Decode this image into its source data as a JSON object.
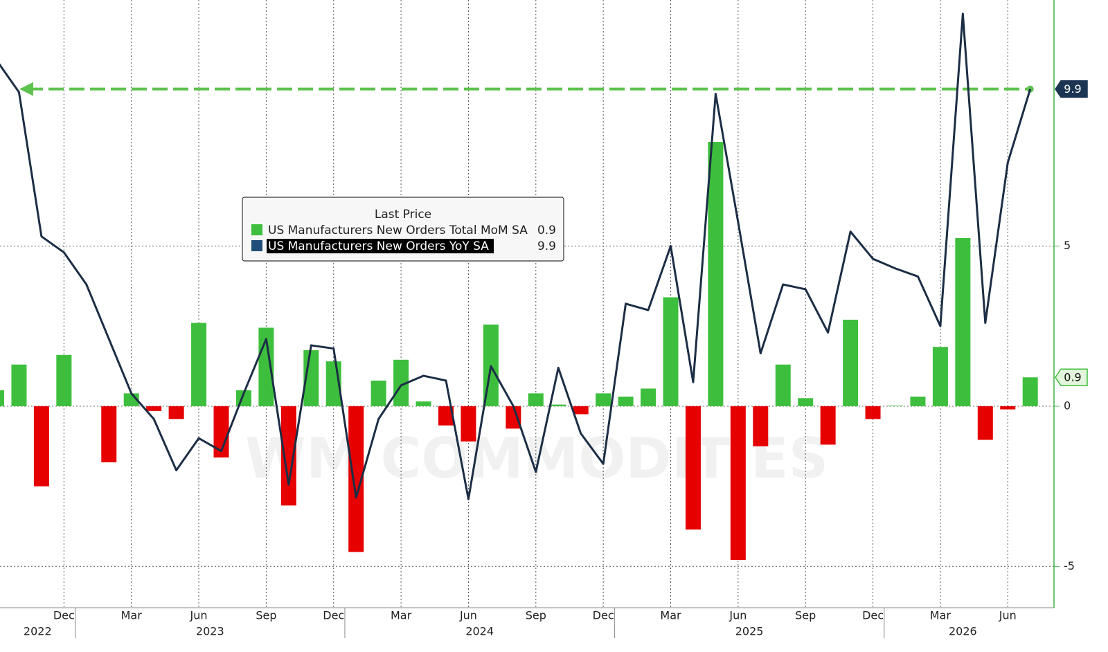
{
  "chart_data": {
    "type": "bar-line",
    "x": [
      "2022-09",
      "2022-10",
      "2022-11",
      "2022-12",
      "2023-01",
      "2023-02",
      "2023-03",
      "2023-04",
      "2023-05",
      "2023-06",
      "2023-07",
      "2023-08",
      "2023-09",
      "2023-10",
      "2023-11",
      "2023-12",
      "2024-01",
      "2024-02",
      "2024-03",
      "2024-04",
      "2024-05",
      "2024-06",
      "2024-07",
      "2024-08",
      "2024-09",
      "2024-10",
      "2024-11",
      "2024-12",
      "2025-01",
      "2025-02",
      "2025-03",
      "2025-04",
      "2025-05",
      "2025-06",
      "2025-07",
      "2025-08",
      "2025-09",
      "2025-10",
      "2025-11",
      "2025-12",
      "2026-01",
      "2026-02",
      "2026-03",
      "2026-04",
      "2026-05",
      "2026-06",
      "2026-07"
    ],
    "series": [
      {
        "name": "US Manufacturers New Orders Total MoM SA",
        "kind": "bar",
        "color": "#3dbf3d",
        "negative_color": "#e60000",
        "values": [
          0.5,
          1.3,
          -2.5,
          1.6,
          0.0,
          -1.75,
          0.4,
          -0.15,
          -0.4,
          2.6,
          -1.6,
          0.5,
          2.45,
          -3.1,
          1.75,
          1.4,
          -4.55,
          0.8,
          1.45,
          0.15,
          -0.6,
          -1.1,
          2.55,
          -0.7,
          0.4,
          0.05,
          -0.25,
          0.4,
          0.3,
          0.55,
          3.4,
          -3.85,
          8.25,
          -4.8,
          -1.25,
          1.3,
          0.25,
          -1.2,
          2.7,
          -0.4,
          0.02,
          0.3,
          1.85,
          5.25,
          -1.05,
          -0.1,
          0.9
        ]
      },
      {
        "name": "US Manufacturers New Orders YoY SA",
        "kind": "line",
        "color": "#1c2e45",
        "swatch_color": "#1f4e79",
        "values": [
          10.8,
          9.8,
          5.3,
          4.8,
          3.8,
          2.1,
          0.4,
          -0.4,
          -2.0,
          -1.0,
          -1.4,
          0.4,
          2.1,
          -2.45,
          1.9,
          1.8,
          -2.85,
          -0.4,
          0.65,
          0.95,
          0.8,
          -2.9,
          1.25,
          0.0,
          -2.05,
          1.2,
          -0.85,
          -1.8,
          3.2,
          3.0,
          5.0,
          0.75,
          9.75,
          5.75,
          1.65,
          3.8,
          3.65,
          2.3,
          5.45,
          4.6,
          4.3,
          4.05,
          2.5,
          12.25,
          2.6,
          7.6,
          9.9
        ]
      }
    ],
    "legend_title": "Last Price",
    "ylim": [
      -6.29,
      12.68
    ],
    "yticks": [
      -5,
      0,
      5
    ],
    "xticks": [
      {
        "value": "2022-12",
        "label": "Dec"
      },
      {
        "value": "2023-03",
        "label": "Mar"
      },
      {
        "value": "2023-06",
        "label": "Jun"
      },
      {
        "value": "2023-09",
        "label": "Sep"
      },
      {
        "value": "2023-12",
        "label": "Dec"
      },
      {
        "value": "2024-03",
        "label": "Mar"
      },
      {
        "value": "2024-06",
        "label": "Jun"
      },
      {
        "value": "2024-09",
        "label": "Sep"
      },
      {
        "value": "2024-12",
        "label": "Dec"
      },
      {
        "value": "2025-03",
        "label": "Mar"
      },
      {
        "value": "2025-06",
        "label": "Jun"
      },
      {
        "value": "2025-09",
        "label": "Sep"
      },
      {
        "value": "2025-12",
        "label": "Dec"
      },
      {
        "value": "2026-03",
        "label": "Mar"
      },
      {
        "value": "2026-06",
        "label": "Jun"
      }
    ],
    "year_labels": [
      "2022",
      "2023",
      "2024",
      "2025",
      "2026"
    ],
    "watermark": "WM COMMODITIES",
    "grid": true
  }
}
